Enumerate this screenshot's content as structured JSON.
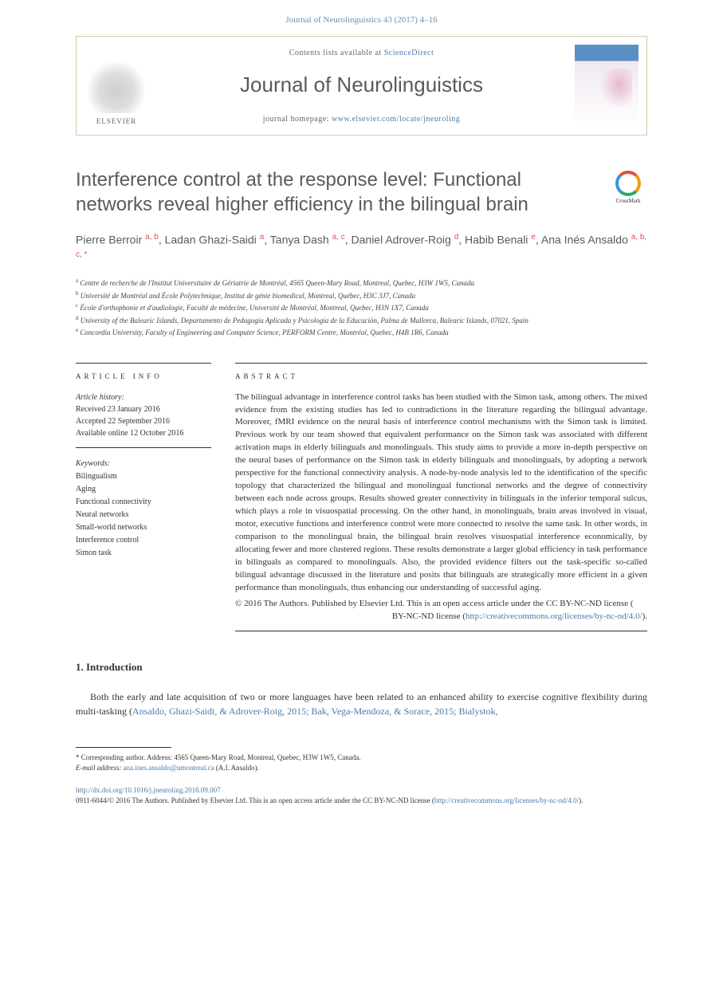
{
  "header": {
    "citation": "Journal of Neurolinguistics 43 (2017) 4–16",
    "contents_prefix": "Contents lists available at ",
    "contents_link": "ScienceDirect",
    "journal_name": "Journal of Neurolinguistics",
    "homepage_prefix": "journal homepage: ",
    "homepage_url": "www.elsevier.com/locate/jneuroling",
    "elsevier_label": "ELSEVIER"
  },
  "crossmark": {
    "label": "CrossMark"
  },
  "article": {
    "title": "Interference control at the response level: Functional networks reveal higher efficiency in the bilingual brain",
    "authors_html": "Pierre Berroir <sup>a, b</sup>, Ladan Ghazi-Saidi <sup>a</sup>, Tanya Dash <sup>a, c</sup>, Daniel Adrover-Roig <sup>d</sup>, Habib Benali <sup>e</sup>, Ana Inés Ansaldo <sup>a, b, c, *</sup>",
    "affiliations": [
      {
        "sup": "a",
        "text": "Centre de recherche de l'Institut Universitaire de Gériatrie de Montréal, 4565 Queen-Mary Road, Montreal, Quebec, H3W 1W5, Canada"
      },
      {
        "sup": "b",
        "text": "Université de Montréal and École Polytechnique, Institut de génie biomedical, Montreal, Québec, H3C 3J7, Canada"
      },
      {
        "sup": "c",
        "text": "École d'orthophonie et d'audiologie, Faculté de médecine, Université de Montréal, Montreal, Quebec, H3N 1X7, Canada"
      },
      {
        "sup": "d",
        "text": "University of the Balearic Islands, Departamento de Pedagogía Aplicada y Psicología de la Educación, Palma de Mallorca, Balearic Islands, 07021, Spain"
      },
      {
        "sup": "e",
        "text": "Concordia University, Faculty of Engineering and Computer Science, PERFORM Centre, Montréal, Quebec, H4B 1R6, Canada"
      }
    ]
  },
  "info": {
    "label": "ARTICLE INFO",
    "history_label": "Article history:",
    "history": [
      "Received 23 January 2016",
      "Accepted 22 September 2016",
      "Available online 12 October 2016"
    ],
    "keywords_label": "Keywords:",
    "keywords": [
      "Bilingualism",
      "Aging",
      "Functional connectivity",
      "Neural networks",
      "Small-world networks",
      "Interference control",
      "Simon task"
    ]
  },
  "abstract": {
    "label": "ABSTRACT",
    "text": "The bilingual advantage in interference control tasks has been studied with the Simon task, among others. The mixed evidence from the existing studies has led to contradictions in the literature regarding the bilingual advantage. Moreover, fMRI evidence on the neural basis of interference control mechanisms with the Simon task is limited. Previous work by our team showed that equivalent performance on the Simon task was associated with different activation maps in elderly bilinguals and monolinguals. This study aims to provide a more in-depth perspective on the neural bases of performance on the Simon task in elderly bilinguals and monolinguals, by adopting a network perspective for the functional connectivity analysis. A node-by-node analysis led to the identification of the specific topology that characterized the bilingual and monolingual functional networks and the degree of connectivity between each node across groups. Results showed greater connectivity in bilinguals in the inferior temporal sulcus, which plays a role in visuospatial processing. On the other hand, in monolinguals, brain areas involved in visual, motor, executive functions and interference control were more connected to resolve the same task. In other words, in comparison to the monolingual brain, the bilingual brain resolves visuospatial interference economically, by allocating fewer and more clustered regions. These results demonstrate a larger global efficiency in task performance in bilinguals as compared to monolinguals. Also, the provided evidence filters out the task-specific so-called bilingual advantage discussed in the literature and posits that bilinguals are strategically more efficient in a given performance than monolinguals, thus enhancing our understanding of successful aging.",
    "copyright": "© 2016 The Authors. Published by Elsevier Ltd. This is an open access article under the CC BY-NC-ND license (",
    "license_url": "http://creativecommons.org/licenses/by-nc-nd/4.0/",
    "copyright_suffix": ")."
  },
  "introduction": {
    "heading": "1. Introduction",
    "para": "Both the early and late acquisition of two or more languages have been related to an enhanced ability to exercise cognitive flexibility during multi-tasking (",
    "cite": "Ansaldo, Ghazi-Saidi, & Adrover-Roig, 2015; Bak, Vega-Mendoza, & Sorace, 2015; Bialystok,"
  },
  "footnotes": {
    "corr_label": "* Corresponding author. Address: 4565 Queen-Mary Road, Montreal, Quebec, H3W 1W5, Canada.",
    "email_label": "E-mail address: ",
    "email": "ana.ines.ansaldo@umontreal.ca",
    "email_suffix": " (A.I. Ansaldo)."
  },
  "bottom": {
    "doi": "http://dx.doi.org/10.1016/j.jneuroling.2016.09.007",
    "issn_line": "0911-6044/© 2016 The Authors. Published by Elsevier Ltd. This is an open access article under the CC BY-NC-ND license (",
    "license_url": "http://creativecommons.org/licenses/by-nc-nd/4.0/",
    "suffix": ")."
  },
  "colors": {
    "link": "#4a7aab",
    "sup": "#d9534f",
    "heading": "#5a5a5a",
    "border": "#d4c9a8"
  }
}
